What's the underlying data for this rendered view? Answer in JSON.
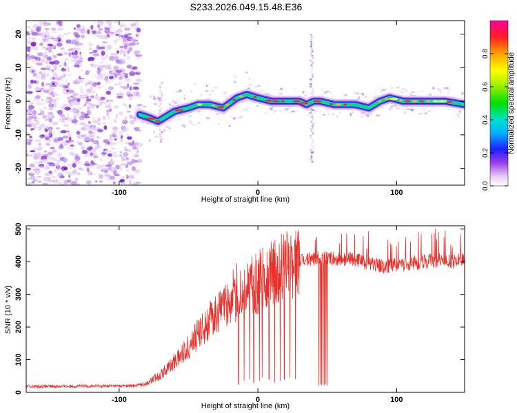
{
  "title": "S233.2026.049.15.48.E36",
  "chart_data": [
    {
      "type": "heatmap",
      "name": "spectrogram",
      "xlabel": "Height of straight line (km)",
      "ylabel": "Frequency (Hz)",
      "xlim": [
        -167,
        149
      ],
      "ylim": [
        -25,
        24
      ],
      "xticks": [
        -100,
        0,
        100
      ],
      "yticks": [
        -20,
        -10,
        0,
        10,
        20
      ],
      "colorbar": {
        "label": "Normalized spectral amplitude",
        "range": [
          0,
          1
        ],
        "ticks": [
          "0.0",
          "0.2",
          "0.4",
          "0.6",
          "0.8"
        ]
      },
      "ridge_points": [
        {
          "x": -85,
          "y": -4
        },
        {
          "x": -78,
          "y": -5
        },
        {
          "x": -72,
          "y": -6
        },
        {
          "x": -68,
          "y": -5
        },
        {
          "x": -60,
          "y": -3
        },
        {
          "x": -50,
          "y": -2
        },
        {
          "x": -43,
          "y": -1
        },
        {
          "x": -35,
          "y": -1
        },
        {
          "x": -25,
          "y": -2
        },
        {
          "x": -15,
          "y": 1
        },
        {
          "x": -8,
          "y": 2
        },
        {
          "x": 0,
          "y": 1
        },
        {
          "x": 10,
          "y": 0
        },
        {
          "x": 20,
          "y": 0
        },
        {
          "x": 30,
          "y": 0
        },
        {
          "x": 35,
          "y": -1
        },
        {
          "x": 40,
          "y": 0
        },
        {
          "x": 45,
          "y": 0
        },
        {
          "x": 55,
          "y": -1
        },
        {
          "x": 70,
          "y": -1
        },
        {
          "x": 80,
          "y": -2
        },
        {
          "x": 88,
          "y": 0
        },
        {
          "x": 95,
          "y": 1
        },
        {
          "x": 105,
          "y": 0
        },
        {
          "x": 120,
          "y": 0
        },
        {
          "x": 135,
          "y": 0
        },
        {
          "x": 149,
          "y": -1
        }
      ]
    },
    {
      "type": "line",
      "name": "snr",
      "xlabel": "Height of straight line (km)",
      "ylabel": "SNR (10 * v/v)",
      "xlim": [
        -167,
        149
      ],
      "ylim": [
        0,
        510
      ],
      "xticks": [
        -100,
        0,
        100
      ],
      "yticks": [
        0,
        100,
        200,
        300,
        400,
        500
      ],
      "color": "#e8302a",
      "envelope": [
        {
          "x": -167,
          "y": 18
        },
        {
          "x": -90,
          "y": 20
        },
        {
          "x": -80,
          "y": 28
        },
        {
          "x": -70,
          "y": 55
        },
        {
          "x": -60,
          "y": 95
        },
        {
          "x": -50,
          "y": 140
        },
        {
          "x": -40,
          "y": 195
        },
        {
          "x": -30,
          "y": 240
        },
        {
          "x": -20,
          "y": 275
        },
        {
          "x": -10,
          "y": 300
        },
        {
          "x": 0,
          "y": 330
        },
        {
          "x": 10,
          "y": 365
        },
        {
          "x": 20,
          "y": 385
        },
        {
          "x": 30,
          "y": 400
        },
        {
          "x": 40,
          "y": 410
        },
        {
          "x": 50,
          "y": 412
        },
        {
          "x": 60,
          "y": 410
        },
        {
          "x": 70,
          "y": 405
        },
        {
          "x": 80,
          "y": 395
        },
        {
          "x": 90,
          "y": 385
        },
        {
          "x": 100,
          "y": 390
        },
        {
          "x": 110,
          "y": 395
        },
        {
          "x": 120,
          "y": 400
        },
        {
          "x": 130,
          "y": 405
        },
        {
          "x": 140,
          "y": 400
        },
        {
          "x": 149,
          "y": 410
        }
      ],
      "dropouts": [
        {
          "x": -14,
          "y": 25
        },
        {
          "x": -10,
          "y": 35
        },
        {
          "x": -6,
          "y": 40
        },
        {
          "x": -3,
          "y": 30
        },
        {
          "x": 1,
          "y": 35
        },
        {
          "x": 3,
          "y": 45
        },
        {
          "x": 8,
          "y": 40
        },
        {
          "x": 12,
          "y": 30
        },
        {
          "x": 16,
          "y": 35
        },
        {
          "x": 19,
          "y": 40
        },
        {
          "x": 23,
          "y": 45
        },
        {
          "x": 27,
          "y": 40
        },
        {
          "x": 44,
          "y": 20
        },
        {
          "x": 45,
          "y": 25
        },
        {
          "x": 46,
          "y": 22
        },
        {
          "x": 47,
          "y": 24
        },
        {
          "x": 48,
          "y": 21
        },
        {
          "x": 49,
          "y": 26
        },
        {
          "x": 50,
          "y": 20
        }
      ]
    }
  ]
}
